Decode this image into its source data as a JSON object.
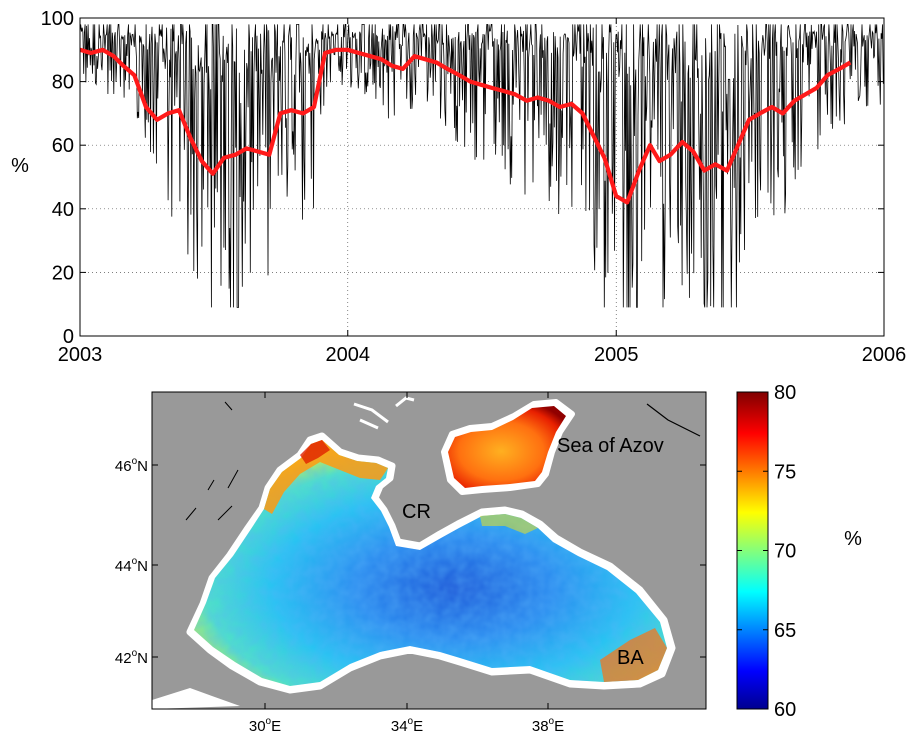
{
  "chart_data": [
    {
      "type": "line",
      "ylabel": "%",
      "ylim": [
        0,
        100
      ],
      "xlim": [
        "2003-01-01",
        "2006-01-01"
      ],
      "x_ticks": [
        "2003",
        "2004",
        "2005",
        "2006"
      ],
      "y_ticks": [
        "0",
        "20",
        "40",
        "60",
        "80",
        "100"
      ],
      "grid": true,
      "series": [
        {
          "color": "#ff1a1a",
          "style": "thick-smoothed",
          "x": [
            "2003-01-01",
            "2003-01-16",
            "2003-02-01",
            "2003-02-16",
            "2003-03-01",
            "2003-03-16",
            "2003-04-01",
            "2003-04-16",
            "2003-05-01",
            "2003-05-16",
            "2003-06-01",
            "2003-06-16",
            "2003-07-01",
            "2003-07-16",
            "2003-08-01",
            "2003-08-16",
            "2003-09-01",
            "2003-09-16",
            "2003-10-01",
            "2003-10-16",
            "2003-11-01",
            "2003-11-16",
            "2003-12-01",
            "2003-12-16",
            "2004-01-01",
            "2004-01-16",
            "2004-02-01",
            "2004-02-16",
            "2004-03-01",
            "2004-03-16",
            "2004-04-01",
            "2004-04-16",
            "2004-05-01",
            "2004-05-16",
            "2004-06-01",
            "2004-06-16",
            "2004-07-01",
            "2004-07-16",
            "2004-08-01",
            "2004-08-16",
            "2004-09-01",
            "2004-09-16",
            "2004-10-01",
            "2004-10-16",
            "2004-11-01",
            "2004-11-16",
            "2004-12-01",
            "2004-12-16",
            "2005-01-01",
            "2005-01-16",
            "2005-02-01",
            "2005-02-16",
            "2005-03-01",
            "2005-03-16",
            "2005-04-01",
            "2005-04-16",
            "2005-05-01",
            "2005-05-16",
            "2005-06-01",
            "2005-06-16",
            "2005-07-01",
            "2005-07-16",
            "2005-08-01",
            "2005-08-16",
            "2005-09-01",
            "2005-09-16",
            "2005-10-01",
            "2005-10-16",
            "2005-11-01",
            "2005-11-16"
          ],
          "values": [
            90,
            89,
            90,
            88,
            85,
            82,
            72,
            68,
            70,
            71,
            62,
            55,
            51,
            56,
            57,
            59,
            58,
            57,
            70,
            71,
            70,
            72,
            89,
            90,
            90,
            89,
            88,
            87,
            85,
            84,
            88,
            87,
            86,
            84,
            82,
            80,
            79,
            78,
            77,
            76,
            74,
            75,
            74,
            72,
            73,
            70,
            63,
            56,
            44,
            42,
            52,
            60,
            55,
            57,
            61,
            58,
            52,
            54,
            52,
            60,
            68,
            70,
            72,
            70,
            74,
            76,
            78,
            82,
            84,
            86
          ]
        },
        {
          "color": "#000000",
          "style": "thin-daily",
          "x_start": "2003-01-01",
          "x_end": "2005-12-31",
          "points": 1095,
          "envelope_mean": [
            90,
            89,
            90,
            88,
            85,
            82,
            72,
            68,
            70,
            71,
            62,
            55,
            51,
            56,
            57,
            59,
            58,
            57,
            70,
            71,
            70,
            72,
            89,
            90,
            90,
            89,
            88,
            87,
            85,
            84,
            88,
            87,
            86,
            84,
            82,
            80,
            79,
            78,
            77,
            76,
            74,
            75,
            74,
            72,
            73,
            70,
            63,
            56,
            44,
            42,
            52,
            60,
            55,
            57,
            61,
            58,
            52,
            54,
            52,
            60,
            68,
            70,
            72,
            70,
            74,
            76,
            78,
            82,
            84,
            86
          ],
          "observed_range": [
            9,
            98
          ]
        }
      ]
    },
    {
      "type": "heatmap",
      "colorbar": {
        "range": [
          60,
          80
        ],
        "ticks": [
          "60",
          "65",
          "70",
          "75",
          "80"
        ],
        "label": "%",
        "colormap": "jet"
      },
      "x_ticks": [
        "30",
        "34",
        "38"
      ],
      "x_tick_suffix": "E",
      "y_ticks": [
        "42",
        "44",
        "46"
      ],
      "y_tick_suffix": "N",
      "degree_mark": "o",
      "land_color": "#999999",
      "annotations": [
        {
          "text": "Sea of Azov"
        },
        {
          "text": "CR"
        },
        {
          "text": "BA"
        }
      ]
    }
  ]
}
